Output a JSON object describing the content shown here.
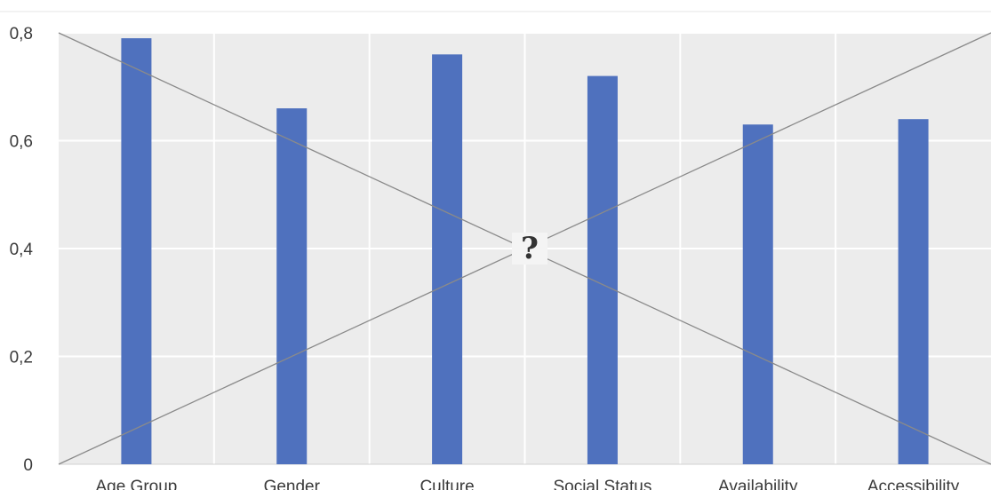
{
  "chart_data": {
    "type": "bar",
    "categories": [
      "Age Group",
      "Gender",
      "Culture",
      "Social Status",
      "Availability",
      "Accessibility"
    ],
    "values": [
      0.79,
      0.66,
      0.76,
      0.72,
      0.63,
      0.64
    ],
    "yticks": [
      "0",
      "0,2",
      "0,4",
      "0,6",
      "0,8"
    ],
    "ytick_values": [
      0,
      0.2,
      0.4,
      0.6,
      0.8
    ],
    "ylim": [
      0,
      0.8
    ],
    "grid": true,
    "title": "",
    "xlabel": "",
    "ylabel": "",
    "placeholder_marker": "?",
    "colors": {
      "bar": "#4f71be",
      "plot_background": "#ececec",
      "gridline": "#ffffff",
      "cross_line": "#8a8a8a"
    }
  }
}
